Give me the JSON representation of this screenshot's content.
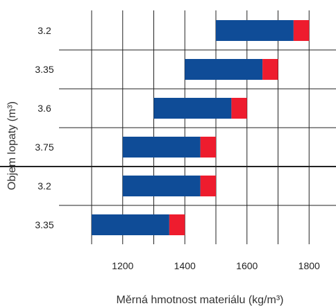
{
  "chart_data": {
    "type": "bar",
    "orientation": "horizontal",
    "stacked": true,
    "xlabel": "Měrná hmotnost materiálu (kg/m³)",
    "ylabel": "Objem lopaty (m³)",
    "xlim": [
      1100,
      1800
    ],
    "xticks": [
      1200,
      1400,
      1600,
      1800
    ],
    "grid": true,
    "categories": [
      "3.2",
      "3.35",
      "3.6",
      "3.75",
      "3.2",
      "3.35"
    ],
    "group_separator_after_index": 3,
    "series": [
      {
        "color": "#0f4c97",
        "start": [
          1500,
          1400,
          1300,
          1200,
          1200,
          1100
        ],
        "end": [
          1750,
          1650,
          1550,
          1450,
          1450,
          1350
        ]
      },
      {
        "color": "#ee1c2e",
        "start": [
          1750,
          1650,
          1550,
          1450,
          1450,
          1350
        ],
        "end": [
          1800,
          1700,
          1600,
          1500,
          1500,
          1400
        ]
      }
    ]
  }
}
